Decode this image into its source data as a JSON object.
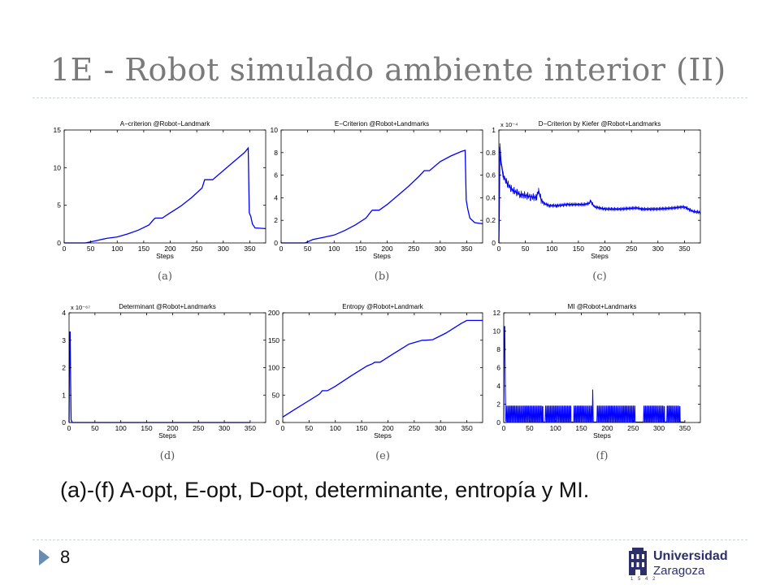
{
  "slide": {
    "title": "1E - Robot simulado ambiente interior (II)",
    "caption": "(a)-(f) A-opt, E-opt, D-opt, determinante, entropía y MI.",
    "page_number": "8",
    "logo": {
      "name": "Universidad",
      "city": "Zaragoza",
      "year": "1 5 4 2"
    },
    "colors": {
      "title": "#7a7a7a",
      "series": "#0000ff",
      "bullet": "#6a8cb0",
      "logo": "#2d2f69"
    }
  },
  "chart_data": [
    {
      "type": "line",
      "title": "A−criterion @Robot−Landmark",
      "xlabel": "Steps",
      "panel_label": "(a)",
      "xlim": [
        0,
        380
      ],
      "ylim": [
        0,
        15
      ],
      "xticks": [
        "0",
        "50",
        "100",
        "150",
        "200",
        "250",
        "300",
        "350"
      ],
      "yticks": [
        "0",
        "5",
        "10",
        "15"
      ],
      "x": [
        0,
        40,
        60,
        80,
        100,
        120,
        140,
        160,
        170,
        172,
        185,
        200,
        220,
        240,
        260,
        265,
        280,
        300,
        320,
        340,
        347,
        349,
        352,
        355,
        360,
        380
      ],
      "y": [
        0,
        0,
        0.3,
        0.6,
        0.8,
        1.2,
        1.7,
        2.4,
        3.2,
        3.3,
        3.3,
        4.0,
        4.9,
        6.0,
        7.3,
        8.4,
        8.4,
        9.6,
        10.8,
        12.0,
        12.6,
        4.0,
        3.5,
        2.5,
        2.0,
        1.9
      ]
    },
    {
      "type": "line",
      "title": "E−Criterion @Robot+Landmarks",
      "xlabel": "Steps",
      "panel_label": "(b)",
      "xlim": [
        0,
        380
      ],
      "ylim": [
        0,
        10
      ],
      "xticks": [
        "0",
        "50",
        "100",
        "150",
        "200",
        "250",
        "300",
        "350"
      ],
      "yticks": [
        "0",
        "2",
        "4",
        "6",
        "8",
        "10"
      ],
      "x": [
        0,
        45,
        60,
        80,
        100,
        120,
        140,
        160,
        170,
        172,
        185,
        200,
        220,
        240,
        260,
        270,
        280,
        300,
        320,
        340,
        347,
        349,
        352,
        356,
        365,
        380
      ],
      "y": [
        0,
        0,
        0.3,
        0.5,
        0.7,
        1.1,
        1.6,
        2.2,
        2.8,
        2.9,
        2.9,
        3.4,
        4.2,
        5.0,
        5.9,
        6.4,
        6.4,
        7.2,
        7.7,
        8.1,
        8.2,
        3.8,
        3.0,
        2.2,
        1.8,
        1.7
      ]
    },
    {
      "type": "line",
      "title": "D−Criterion by Kiefer @Robot+Landmarks",
      "xlabel": "Steps",
      "panel_label": "(c)",
      "y_exponent": "x 10⁻⁴",
      "xlim": [
        0,
        380
      ],
      "ylim": [
        0,
        1
      ],
      "xticks": [
        "0",
        "50",
        "100",
        "150",
        "200",
        "250",
        "300",
        "350"
      ],
      "yticks": [
        "0",
        "0.2",
        "0.4",
        "0.6",
        "0.8",
        "1"
      ],
      "x": [
        0,
        2,
        4,
        8,
        15,
        25,
        40,
        60,
        70,
        75,
        80,
        85,
        95,
        110,
        130,
        160,
        170,
        173,
        180,
        200,
        230,
        260,
        270,
        300,
        330,
        350,
        365,
        380
      ],
      "y": [
        0,
        0.85,
        0.72,
        0.6,
        0.53,
        0.47,
        0.43,
        0.41,
        0.4,
        0.46,
        0.38,
        0.35,
        0.33,
        0.33,
        0.34,
        0.34,
        0.35,
        0.37,
        0.32,
        0.3,
        0.3,
        0.31,
        0.3,
        0.3,
        0.31,
        0.32,
        0.28,
        0.27
      ]
    },
    {
      "type": "line",
      "title": "Determinant @Robot+Landmarks",
      "xlabel": "Steps",
      "panel_label": "(d)",
      "y_exponent": "x 10⁻⁶⁷",
      "xlim": [
        0,
        380
      ],
      "ylim": [
        0,
        4
      ],
      "xticks": [
        "0",
        "50",
        "100",
        "150",
        "200",
        "250",
        "300",
        "350"
      ],
      "yticks": [
        "0",
        "1",
        "2",
        "3",
        "4"
      ],
      "x": [
        0,
        1,
        2,
        3,
        4,
        6,
        20,
        100,
        200,
        300,
        350
      ],
      "y": [
        0,
        3.3,
        3.3,
        1.5,
        0.1,
        0,
        0,
        0,
        0,
        0,
        0
      ]
    },
    {
      "type": "line",
      "title": "Entropy @Robot+Landmark",
      "xlabel": "Steps",
      "panel_label": "(e)",
      "xlim": [
        0,
        380
      ],
      "ylim": [
        0,
        200
      ],
      "xticks": [
        "0",
        "50",
        "100",
        "150",
        "200",
        "250",
        "300",
        "350"
      ],
      "yticks": [
        "0",
        "50",
        "100",
        "150",
        "200"
      ],
      "x": [
        0,
        20,
        50,
        70,
        75,
        85,
        100,
        130,
        160,
        170,
        175,
        185,
        210,
        240,
        265,
        270,
        285,
        310,
        340,
        350,
        380
      ],
      "y": [
        10,
        22,
        40,
        52,
        58,
        58,
        66,
        85,
        103,
        107,
        110,
        110,
        125,
        143,
        150,
        150,
        151,
        163,
        181,
        186,
        186
      ]
    },
    {
      "type": "line",
      "title": "MI @Robot+Landmarks",
      "xlabel": "Steps",
      "panel_label": "(f)",
      "xlim": [
        0,
        380
      ],
      "ylim": [
        0,
        12
      ],
      "xticks": [
        "0",
        "50",
        "100",
        "150",
        "200",
        "250",
        "300",
        "350"
      ],
      "yticks": [
        "0",
        "2",
        "4",
        "6",
        "8",
        "10",
        "12"
      ],
      "spikes": {
        "first_peak": 10.5,
        "mid_peak": 3.6,
        "mid_peak_x": 172,
        "comb_value": 1.8,
        "comb_ranges": [
          [
            5,
            75
          ],
          [
            80,
            130
          ],
          [
            135,
            170
          ],
          [
            180,
            255
          ],
          [
            270,
            310
          ],
          [
            315,
            340
          ]
        ],
        "comb_spacing": 3
      }
    }
  ]
}
